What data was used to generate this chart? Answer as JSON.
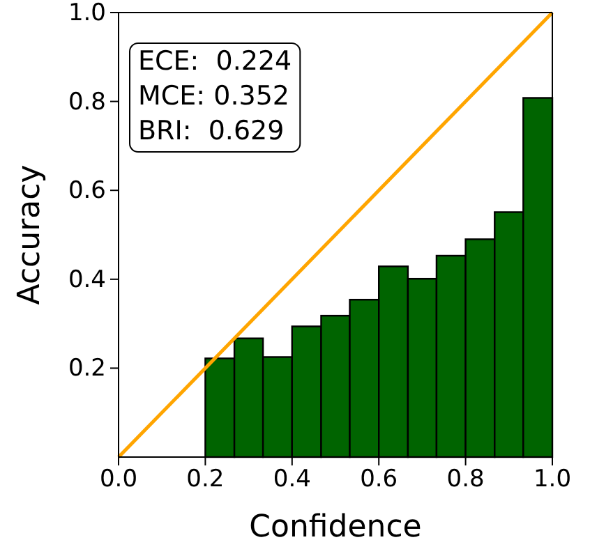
{
  "chart_data": {
    "type": "histogram",
    "xlabel": "Confidence",
    "ylabel": "Accuracy",
    "bins": [
      0.2,
      0.267,
      0.333,
      0.4,
      0.467,
      0.533,
      0.6,
      0.667,
      0.733,
      0.8,
      0.867,
      0.933,
      1.0
    ],
    "values": [
      0.222,
      0.267,
      0.225,
      0.294,
      0.318,
      0.354,
      0.429,
      0.401,
      0.453,
      0.49,
      0.551,
      0.808
    ],
    "color": "#006400",
    "series": [
      {
        "type": "line",
        "color": "#ffa500",
        "x": [
          0,
          1
        ],
        "values": [
          0,
          1
        ]
      }
    ],
    "xlim": [
      0,
      1
    ],
    "ylim": [
      0,
      1
    ],
    "xticks": [
      {
        "value": 0,
        "label": "0.0"
      },
      0.2,
      0.4,
      0.6,
      0.8,
      {
        "value": 1,
        "label": "1.0"
      }
    ],
    "yticks": [
      {
        "value": 0.2,
        "label": "0.2"
      },
      0.4,
      0.6,
      0.8,
      {
        "value": 1,
        "label": "1.0"
      }
    ],
    "annotations": [
      "ECE:  0.224",
      "MCE: 0.352",
      "BRI:  0.629"
    ],
    "grid": false
  }
}
